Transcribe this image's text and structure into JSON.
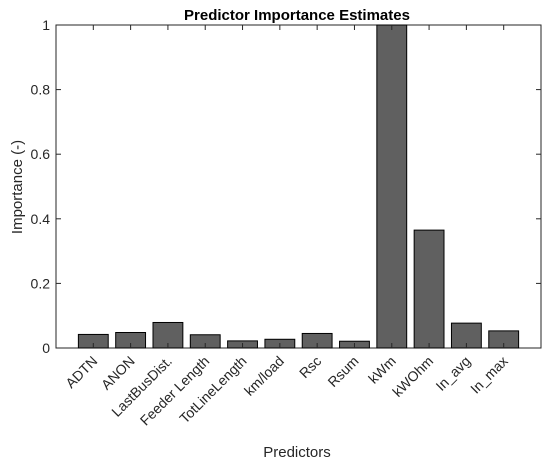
{
  "chart_data": {
    "type": "bar",
    "title": "Predictor Importance Estimates",
    "xlabel": "Predictors",
    "ylabel": "Importance (-)",
    "categories": [
      "ADTN",
      "ANON",
      "LastBusDist.",
      "Feeder Length",
      "TotLineLength",
      "km/load",
      "Rsc",
      "Rsum",
      "kWm",
      "kWOhm",
      "In_avg",
      "In_max"
    ],
    "values": [
      0.042,
      0.048,
      0.079,
      0.041,
      0.022,
      0.027,
      0.045,
      0.021,
      1.0,
      0.365,
      0.077,
      0.053
    ],
    "ylim": [
      0,
      1
    ],
    "yticks": [
      0,
      0.2,
      0.4,
      0.6,
      0.8,
      1
    ],
    "ytick_labels": [
      "0",
      "0.2",
      "0.4",
      "0.6",
      "0.8",
      "1"
    ],
    "bar_color": "#606060",
    "grid": false,
    "legend": "none"
  }
}
